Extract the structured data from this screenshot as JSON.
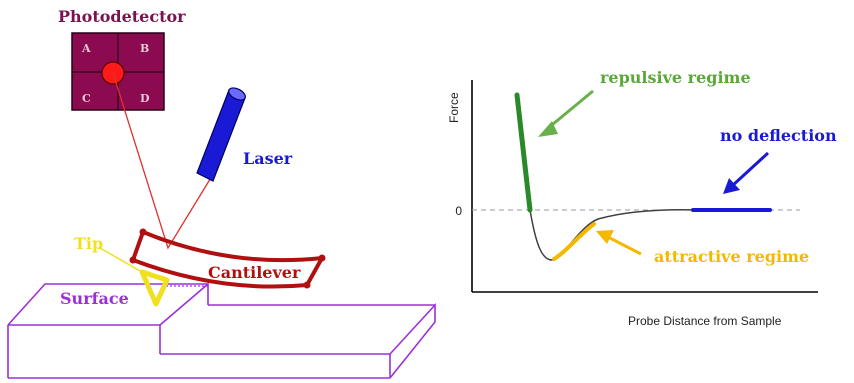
{
  "colors": {
    "photodetector": "#8b0a50",
    "photodetector_label": "#7a1450",
    "laser": "#1a1ad6",
    "laser_beam": "#e0302a",
    "cantilever": "#b01010",
    "tip": "#f0e020",
    "surface": "#9b30d8",
    "repulsive": "#2a8a2a",
    "attractive": "#f5b800",
    "no_deflection": "#1a1ad6",
    "curve": "#404040"
  },
  "afm": {
    "photodetector_label": "Photodetector",
    "quadrants": [
      "A",
      "B",
      "C",
      "D"
    ],
    "laser_label": "Laser",
    "tip_label": "Tip",
    "cantilever_label": "Cantilever",
    "surface_label": "Surface"
  },
  "graph": {
    "ylabel": "Force",
    "xlabel": "Probe Distance from Sample",
    "zero_label": "0",
    "repulsive_label": "repulsive regime",
    "attractive_label": "attractive regime",
    "no_deflection_label": "no deflection"
  }
}
